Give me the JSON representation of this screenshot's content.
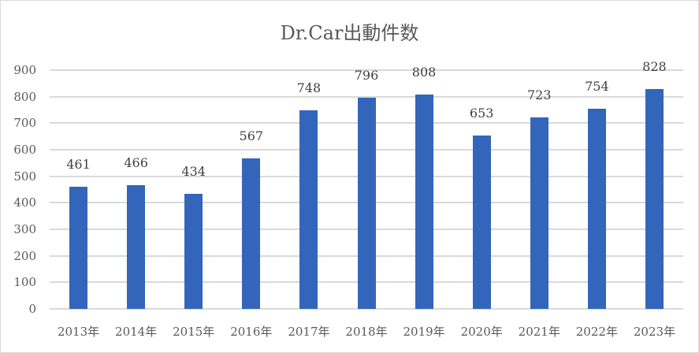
{
  "chart_data": {
    "type": "bar",
    "title": "Dr.Car出動件数",
    "xlabel": "",
    "ylabel": "",
    "categories": [
      "2013年",
      "2014年",
      "2015年",
      "2016年",
      "2017年",
      "2018年",
      "2019年",
      "2020年",
      "2021年",
      "2022年",
      "2023年"
    ],
    "values": [
      461,
      466,
      434,
      567,
      748,
      796,
      808,
      653,
      723,
      754,
      828
    ],
    "ylim": [
      0,
      900
    ],
    "yticks": [
      0,
      100,
      200,
      300,
      400,
      500,
      600,
      700,
      800,
      900
    ],
    "grid": true,
    "legend": null,
    "data_labels": true,
    "bar_color": "#3366bb"
  }
}
